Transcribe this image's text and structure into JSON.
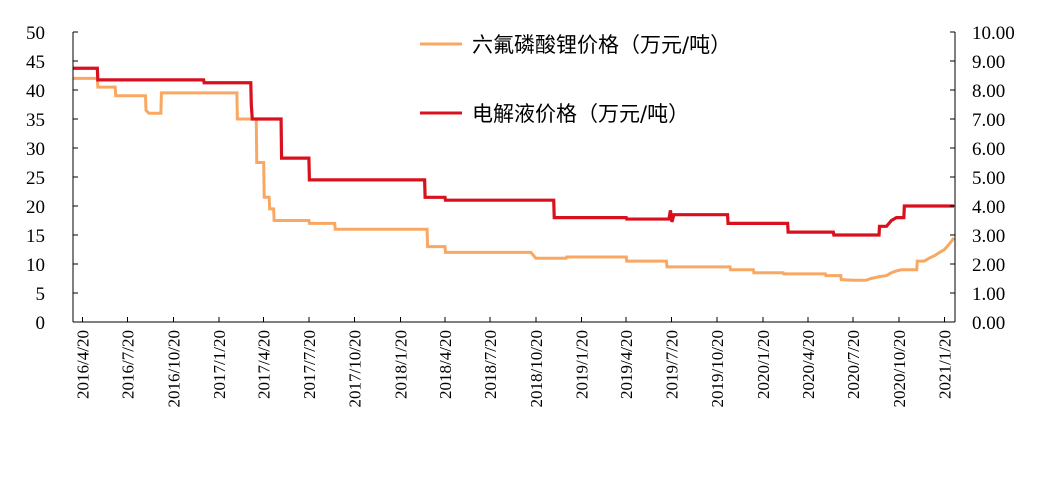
{
  "chart_data": {
    "type": "line",
    "title": "",
    "xlabel": "",
    "ylabel_left": "",
    "ylabel_right": "",
    "ylim_left": [
      0,
      50
    ],
    "ylim_right": [
      0,
      10
    ],
    "yticks_left": [
      "0",
      "5",
      "10",
      "15",
      "20",
      "25",
      "30",
      "35",
      "40",
      "45",
      "50"
    ],
    "yticks_right": [
      "0.00",
      "1.00",
      "2.00",
      "3.00",
      "4.00",
      "5.00",
      "6.00",
      "7.00",
      "8.00",
      "9.00",
      "10.00"
    ],
    "xlim": [
      "2016-04-01",
      "2021-02-10"
    ],
    "xtick_labels": [
      "2016/4/20",
      "2016/7/20",
      "2016/10/20",
      "2017/1/20",
      "2017/4/20",
      "2017/7/20",
      "2017/10/20",
      "2018/1/20",
      "2018/4/20",
      "2018/7/20",
      "2018/10/20",
      "2019/1/20",
      "2019/4/20",
      "2019/7/20",
      "2019/10/20",
      "2020/1/20",
      "2020/4/20",
      "2020/7/20",
      "2020/10/20",
      "2021/1/20"
    ],
    "xtick_dates": [
      "2016-04-20",
      "2016-07-20",
      "2016-10-20",
      "2017-01-20",
      "2017-04-20",
      "2017-07-20",
      "2017-10-20",
      "2018-01-20",
      "2018-04-20",
      "2018-07-20",
      "2018-10-20",
      "2019-01-20",
      "2019-04-20",
      "2019-07-20",
      "2019-10-20",
      "2020-01-20",
      "2020-04-20",
      "2020-07-20",
      "2020-10-20",
      "2021-01-20"
    ],
    "legend_position": "top-center",
    "grid": false,
    "series": [
      {
        "name": "六氟磷酸锂价格（万元/吨）",
        "axis": "left",
        "color": "#F8A862",
        "step": true,
        "points": [
          [
            "2016-04-01",
            42
          ],
          [
            "2016-05-20",
            42
          ],
          [
            "2016-05-21",
            40.5
          ],
          [
            "2016-06-25",
            40.5
          ],
          [
            "2016-06-26",
            39
          ],
          [
            "2016-08-25",
            39
          ],
          [
            "2016-08-26",
            36.5
          ],
          [
            "2016-09-01",
            36
          ],
          [
            "2016-09-25",
            36
          ],
          [
            "2016-09-26",
            39.5
          ],
          [
            "2017-01-15",
            39.5
          ],
          [
            "2017-02-25",
            39.5
          ],
          [
            "2017-02-26",
            35
          ],
          [
            "2017-04-05",
            35
          ],
          [
            "2017-04-06",
            27.5
          ],
          [
            "2017-04-20",
            27.5
          ],
          [
            "2017-04-21",
            21.5
          ],
          [
            "2017-05-01",
            21.5
          ],
          [
            "2017-05-02",
            19.5
          ],
          [
            "2017-05-10",
            19.5
          ],
          [
            "2017-05-11",
            17.5
          ],
          [
            "2017-07-20",
            17.5
          ],
          [
            "2017-07-21",
            17
          ],
          [
            "2017-09-10",
            17
          ],
          [
            "2017-09-11",
            16
          ],
          [
            "2018-03-15",
            16
          ],
          [
            "2018-03-16",
            13
          ],
          [
            "2018-04-20",
            13
          ],
          [
            "2018-04-21",
            12
          ],
          [
            "2018-10-10",
            12
          ],
          [
            "2018-10-20",
            11
          ],
          [
            "2018-12-20",
            11
          ],
          [
            "2018-12-21",
            11.2
          ],
          [
            "2019-04-20",
            11.2
          ],
          [
            "2019-04-21",
            10.5
          ],
          [
            "2019-07-10",
            10.5
          ],
          [
            "2019-07-11",
            9.5
          ],
          [
            "2019-11-15",
            9.5
          ],
          [
            "2019-11-16",
            9
          ],
          [
            "2020-01-01",
            9
          ],
          [
            "2020-01-02",
            8.5
          ],
          [
            "2020-03-01",
            8.5
          ],
          [
            "2020-03-02",
            8.3
          ],
          [
            "2020-05-25",
            8.3
          ],
          [
            "2020-05-26",
            8
          ],
          [
            "2020-06-25",
            8
          ],
          [
            "2020-06-26",
            7.3
          ],
          [
            "2020-07-20",
            7.2
          ],
          [
            "2020-08-15",
            7.2
          ],
          [
            "2020-08-25",
            7.5
          ],
          [
            "2020-09-10",
            7.8
          ],
          [
            "2020-09-25",
            8
          ],
          [
            "2020-10-05",
            8.5
          ],
          [
            "2020-10-15",
            8.8
          ],
          [
            "2020-10-25",
            9
          ],
          [
            "2020-11-25",
            9
          ],
          [
            "2020-11-26",
            10.5
          ],
          [
            "2020-12-10",
            10.5
          ],
          [
            "2020-12-20",
            11
          ],
          [
            "2021-01-01",
            11.5
          ],
          [
            "2021-01-10",
            12
          ],
          [
            "2021-01-20",
            12.5
          ],
          [
            "2021-01-30",
            13.5
          ],
          [
            "2021-02-08",
            14.5
          ]
        ]
      },
      {
        "name": "电解液价格（万元/吨）",
        "axis": "right",
        "color": "#D9101E",
        "step": true,
        "points": [
          [
            "2016-04-01",
            8.75
          ],
          [
            "2016-05-20",
            8.75
          ],
          [
            "2016-05-21",
            8.35
          ],
          [
            "2016-12-20",
            8.35
          ],
          [
            "2016-12-21",
            8.25
          ],
          [
            "2017-03-25",
            8.25
          ],
          [
            "2017-03-26",
            7.5
          ],
          [
            "2017-03-28",
            7.0
          ],
          [
            "2017-05-25",
            7.0
          ],
          [
            "2017-05-26",
            5.65
          ],
          [
            "2017-07-20",
            5.65
          ],
          [
            "2017-07-21",
            4.9
          ],
          [
            "2018-03-10",
            4.9
          ],
          [
            "2018-03-11",
            4.3
          ],
          [
            "2018-04-20",
            4.3
          ],
          [
            "2018-04-21",
            4.2
          ],
          [
            "2018-11-25",
            4.2
          ],
          [
            "2018-11-26",
            3.6
          ],
          [
            "2019-04-20",
            3.6
          ],
          [
            "2019-04-21",
            3.55
          ],
          [
            "2019-07-15",
            3.55
          ],
          [
            "2019-07-18",
            3.85
          ],
          [
            "2019-07-21",
            3.45
          ],
          [
            "2019-07-25",
            3.7
          ],
          [
            "2019-11-10",
            3.7
          ],
          [
            "2019-11-11",
            3.4
          ],
          [
            "2020-03-10",
            3.4
          ],
          [
            "2020-03-11",
            3.1
          ],
          [
            "2020-06-10",
            3.1
          ],
          [
            "2020-06-11",
            3.0
          ],
          [
            "2020-09-10",
            3.0
          ],
          [
            "2020-09-11",
            3.3
          ],
          [
            "2020-09-25",
            3.3
          ],
          [
            "2020-10-05",
            3.5
          ],
          [
            "2020-10-15",
            3.6
          ],
          [
            "2020-10-30",
            3.6
          ],
          [
            "2020-10-31",
            4.0
          ],
          [
            "2021-02-08",
            4.0
          ]
        ]
      }
    ]
  }
}
